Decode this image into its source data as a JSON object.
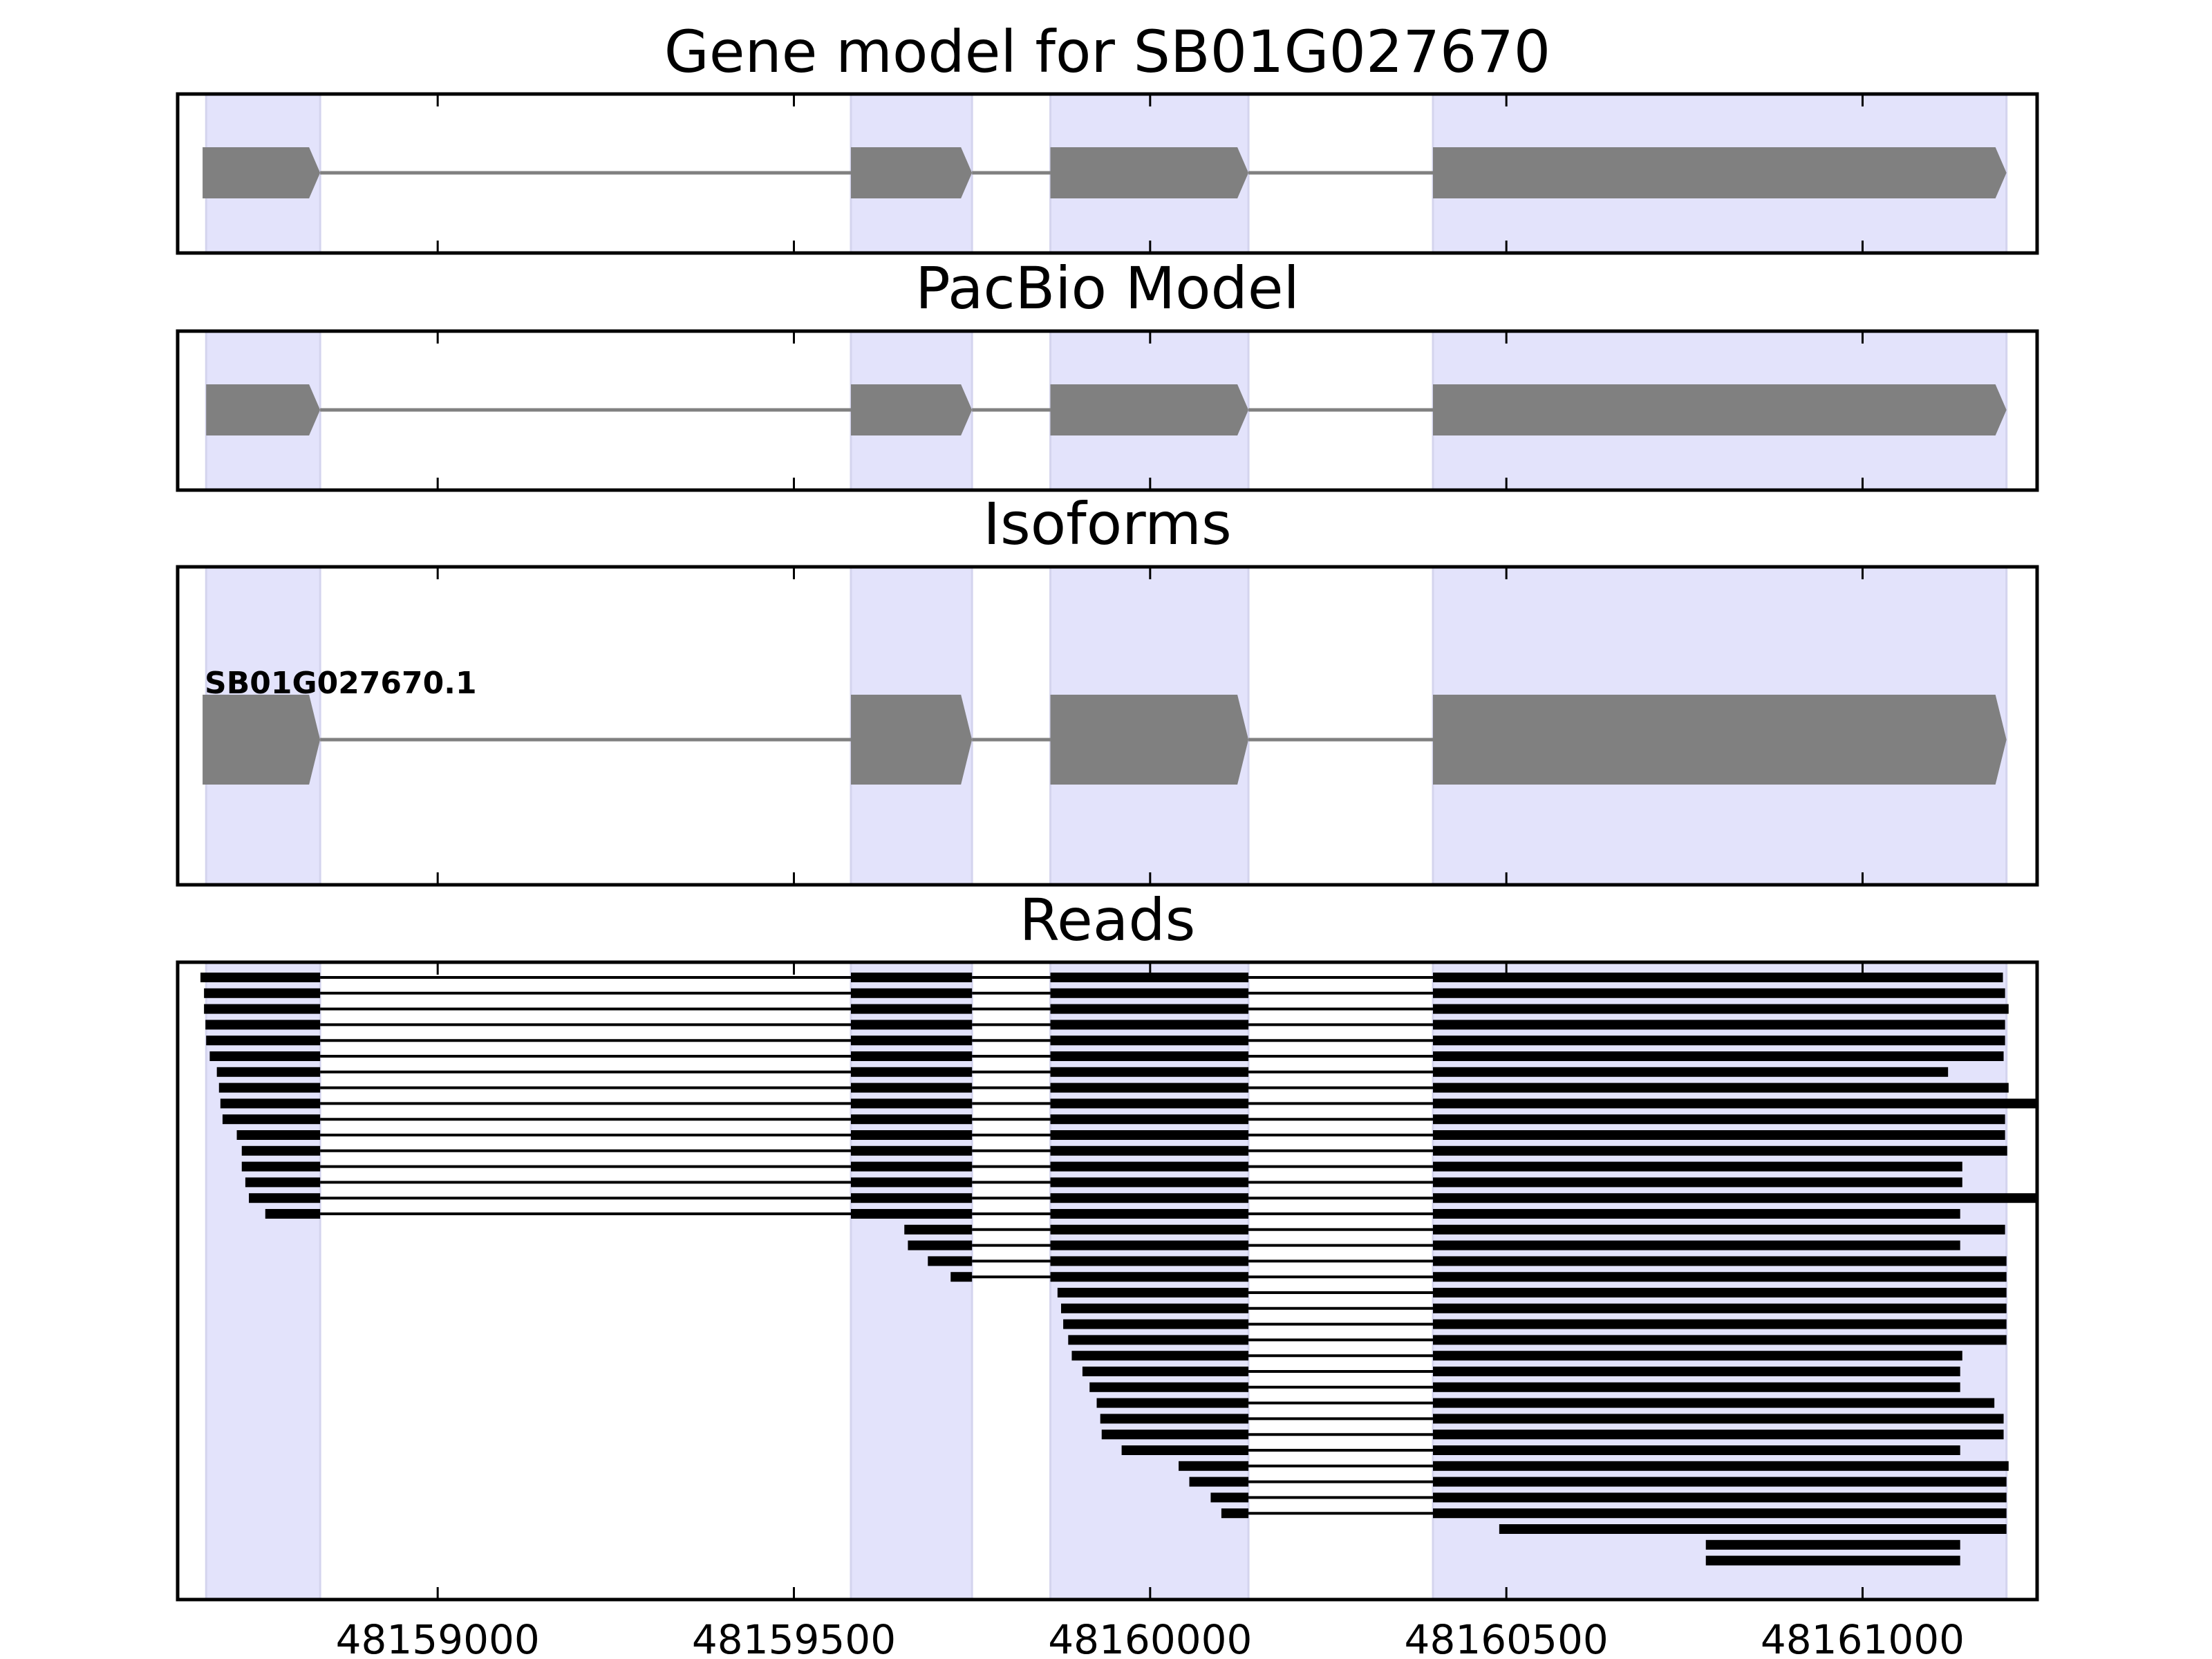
{
  "figure_title": "Gene model for SB01G027670",
  "colors": {
    "exon_fill": "#808080",
    "intron_line": "#808080",
    "exon_band": "#e3e3fb",
    "read_color": "#000000",
    "frame": "#000000"
  },
  "chart_data": {
    "type": "gene-track",
    "xlim": [
      48158635,
      48161245
    ],
    "strand": "+",
    "x_ticks": [
      48159000,
      48159500,
      48160000,
      48160500,
      48161000
    ],
    "x_tick_labels": [
      "48159000",
      "48159500",
      "48160000",
      "48160500",
      "48161000"
    ],
    "exon_bands": [
      [
        48158675,
        48158835
      ],
      [
        48159580,
        48159750
      ],
      [
        48159860,
        48160138
      ],
      [
        48160397,
        48161202
      ]
    ],
    "panels": [
      {
        "id": "gene_model",
        "title": "Gene model for SB01G027670",
        "exons": [
          [
            48158670,
            48158835
          ],
          [
            48159580,
            48159750
          ],
          [
            48159860,
            48160138
          ],
          [
            48160397,
            48161202
          ]
        ]
      },
      {
        "id": "pacbio_model",
        "title": "PacBio Model",
        "exons": [
          [
            48158675,
            48158835
          ],
          [
            48159580,
            48159750
          ],
          [
            48159860,
            48160138
          ],
          [
            48160397,
            48161202
          ]
        ]
      },
      {
        "id": "isoforms",
        "title": "Isoforms",
        "isoforms": [
          {
            "name": "SB01G027670.1",
            "exons": [
              [
                48158670,
                48158835
              ],
              [
                48159580,
                48159750
              ],
              [
                48159860,
                48160138
              ],
              [
                48160397,
                48161202
              ]
            ]
          }
        ]
      },
      {
        "id": "reads",
        "title": "Reads",
        "reads": [
          [
            48158667,
            48161197
          ],
          [
            48158672,
            48161200
          ],
          [
            48158672,
            48161205
          ],
          [
            48158674,
            48161200
          ],
          [
            48158675,
            48161200
          ],
          [
            48158680,
            48161198
          ],
          [
            48158690,
            48161120
          ],
          [
            48158693,
            48161205
          ],
          [
            48158695,
            48161250
          ],
          [
            48158698,
            48161200
          ],
          [
            48158718,
            48161200
          ],
          [
            48158725,
            48161203
          ],
          [
            48158725,
            48161140
          ],
          [
            48158730,
            48161140
          ],
          [
            48158735,
            48161250
          ],
          [
            48158758,
            48161137
          ],
          [
            48159655,
            48161200
          ],
          [
            48159660,
            48161137
          ],
          [
            48159688,
            48161202
          ],
          [
            48159720,
            48161202
          ],
          [
            48159870,
            48161202
          ],
          [
            48159875,
            48161202
          ],
          [
            48159878,
            48161202
          ],
          [
            48159885,
            48161202
          ],
          [
            48159890,
            48161140
          ],
          [
            48159905,
            48161137
          ],
          [
            48159915,
            48161137
          ],
          [
            48159925,
            48161185
          ],
          [
            48159930,
            48161198
          ],
          [
            48159932,
            48161198
          ],
          [
            48159960,
            48161137
          ],
          [
            48160040,
            48161205
          ],
          [
            48160055,
            48161202
          ],
          [
            48160085,
            48161202
          ],
          [
            48160100,
            48161202
          ],
          [
            48160490,
            48161202
          ],
          [
            48160780,
            48161137
          ],
          [
            48160780,
            48161137
          ]
        ]
      }
    ]
  }
}
